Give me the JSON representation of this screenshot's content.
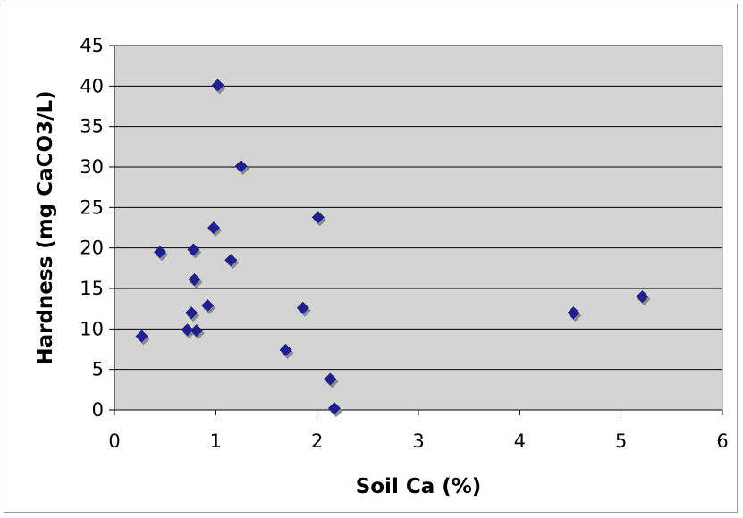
{
  "chart_data": {
    "type": "scatter",
    "xlabel": "Soil Ca (%)",
    "ylabel": "Hardness (mg CaCO3/L)",
    "xlim": [
      0,
      6
    ],
    "ylim": [
      0,
      45
    ],
    "xticks": [
      0,
      1,
      2,
      3,
      4,
      5,
      6
    ],
    "yticks": [
      0,
      5,
      10,
      15,
      20,
      25,
      30,
      35,
      40,
      45
    ],
    "grid": "horizontal",
    "legend": "none",
    "marker": "diamond",
    "colors": {
      "plot_background": "#d4d4d4",
      "marker": "#1f1f8f",
      "marker_shadow": "#8a8a8a",
      "gridline": "#000000"
    },
    "points": [
      {
        "x": 0.27,
        "y": 9.1
      },
      {
        "x": 0.45,
        "y": 19.5
      },
      {
        "x": 0.72,
        "y": 9.9
      },
      {
        "x": 0.76,
        "y": 12.0
      },
      {
        "x": 0.78,
        "y": 19.8
      },
      {
        "x": 0.79,
        "y": 16.1
      },
      {
        "x": 0.81,
        "y": 9.8
      },
      {
        "x": 0.92,
        "y": 12.9
      },
      {
        "x": 0.98,
        "y": 22.5
      },
      {
        "x": 1.02,
        "y": 40.1
      },
      {
        "x": 1.15,
        "y": 18.5
      },
      {
        "x": 1.25,
        "y": 30.1
      },
      {
        "x": 1.69,
        "y": 7.4
      },
      {
        "x": 1.86,
        "y": 12.6
      },
      {
        "x": 2.01,
        "y": 23.8
      },
      {
        "x": 2.13,
        "y": 3.8
      },
      {
        "x": 2.17,
        "y": 0.2
      },
      {
        "x": 4.53,
        "y": 12.0
      },
      {
        "x": 5.21,
        "y": 14.0
      }
    ]
  }
}
